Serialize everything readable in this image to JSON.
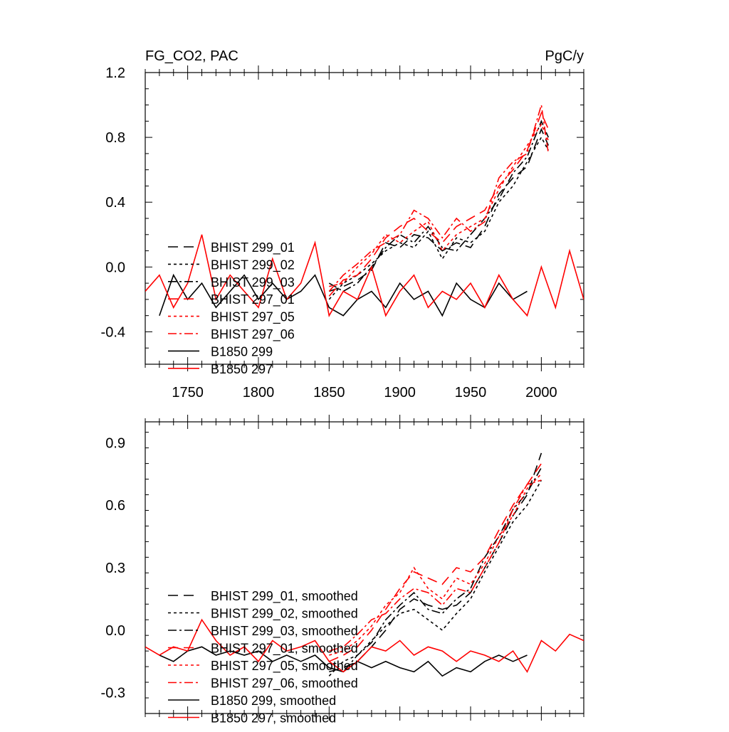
{
  "header": {
    "left_title": "FG_CO2, PAC",
    "right_units": "PgC/y"
  },
  "legend_styles": [
    {
      "key": "h1",
      "dash": "14 8",
      "color": "#000000"
    },
    {
      "key": "h2",
      "dash": "4 4",
      "color": "#000000"
    },
    {
      "key": "h3",
      "dash": "12 4 3 4",
      "color": "#000000"
    },
    {
      "key": "h4",
      "dash": "14 8",
      "color": "#ff0000"
    },
    {
      "key": "h5",
      "dash": "4 4",
      "color": "#ff0000"
    },
    {
      "key": "h6",
      "dash": "12 4 3 4",
      "color": "#ff0000"
    },
    {
      "key": "c1",
      "dash": "",
      "color": "#000000"
    },
    {
      "key": "c2",
      "dash": "",
      "color": "#ff0000"
    }
  ],
  "chart_data": [
    {
      "type": "line",
      "title": "",
      "xlabel": "",
      "ylabel": "",
      "xlim": [
        1720,
        2030
      ],
      "ylim": [
        -0.6,
        1.2
      ],
      "xticks": [
        1750,
        1800,
        1850,
        1900,
        1950,
        2000
      ],
      "yticks": [
        -0.4,
        0.0,
        0.4,
        0.8,
        1.2
      ],
      "ytick_labels": [
        "-0.4",
        "0.0",
        "0.4",
        "0.8",
        "1.2"
      ],
      "legend_position": "left",
      "series": [
        {
          "name": "BHIST 299_01",
          "style": "h1",
          "x": [
            1850,
            1860,
            1870,
            1880,
            1890,
            1900,
            1910,
            1920,
            1930,
            1940,
            1950,
            1960,
            1970,
            1980,
            1990,
            2000,
            2005
          ],
          "y": [
            -0.15,
            -0.12,
            -0.08,
            -0.02,
            0.15,
            0.12,
            0.2,
            0.18,
            0.1,
            0.15,
            0.12,
            0.25,
            0.45,
            0.55,
            0.62,
            0.85,
            0.75
          ]
        },
        {
          "name": "BHIST 299_02",
          "style": "h2",
          "x": [
            1850,
            1860,
            1870,
            1880,
            1890,
            1900,
            1910,
            1920,
            1930,
            1940,
            1950,
            1960,
            1970,
            1980,
            1990,
            2000,
            2005
          ],
          "y": [
            -0.2,
            -0.1,
            -0.05,
            0.02,
            0.1,
            0.15,
            0.12,
            0.22,
            0.05,
            0.18,
            0.15,
            0.22,
            0.4,
            0.5,
            0.65,
            0.8,
            0.72
          ]
        },
        {
          "name": "BHIST 299_03",
          "style": "h3",
          "x": [
            1850,
            1860,
            1870,
            1880,
            1890,
            1900,
            1910,
            1920,
            1930,
            1940,
            1950,
            1960,
            1970,
            1980,
            1990,
            2000,
            2005
          ],
          "y": [
            -0.1,
            -0.15,
            -0.1,
            0.0,
            0.12,
            0.2,
            0.15,
            0.25,
            0.12,
            0.1,
            0.2,
            0.3,
            0.42,
            0.58,
            0.68,
            0.9,
            0.8
          ]
        },
        {
          "name": "BHIST 297_01",
          "style": "h4",
          "x": [
            1850,
            1860,
            1870,
            1880,
            1890,
            1900,
            1910,
            1920,
            1930,
            1940,
            1950,
            1960,
            1970,
            1980,
            1990,
            2000,
            2005
          ],
          "y": [
            -0.18,
            -0.08,
            -0.05,
            0.05,
            0.18,
            0.25,
            0.3,
            0.22,
            0.15,
            0.25,
            0.3,
            0.35,
            0.5,
            0.6,
            0.72,
            0.95,
            0.85
          ]
        },
        {
          "name": "BHIST 297_05",
          "style": "h5",
          "x": [
            1850,
            1860,
            1870,
            1880,
            1890,
            1900,
            1910,
            1920,
            1930,
            1940,
            1950,
            1960,
            1970,
            1980,
            1990,
            2000,
            2005
          ],
          "y": [
            -0.12,
            -0.1,
            0.0,
            0.08,
            0.2,
            0.15,
            0.22,
            0.28,
            0.1,
            0.2,
            0.25,
            0.3,
            0.48,
            0.62,
            0.75,
            0.88,
            0.78
          ]
        },
        {
          "name": "BHIST 297_06",
          "style": "h6",
          "x": [
            1850,
            1860,
            1870,
            1880,
            1890,
            1900,
            1910,
            1920,
            1930,
            1940,
            1950,
            1960,
            1970,
            1980,
            1990,
            2000,
            2005
          ],
          "y": [
            -0.15,
            -0.05,
            0.02,
            0.1,
            0.15,
            0.2,
            0.35,
            0.3,
            0.18,
            0.3,
            0.22,
            0.28,
            0.55,
            0.65,
            0.7,
            1.0,
            0.7
          ]
        },
        {
          "name": "B1850 299",
          "style": "c1",
          "x": [
            1730,
            1740,
            1750,
            1760,
            1770,
            1780,
            1790,
            1800,
            1810,
            1820,
            1830,
            1840,
            1850,
            1860,
            1870,
            1880,
            1890,
            1900,
            1910,
            1920,
            1930,
            1940,
            1950,
            1960,
            1970,
            1980,
            1990
          ],
          "y": [
            -0.3,
            -0.05,
            -0.2,
            -0.1,
            -0.25,
            -0.15,
            -0.05,
            -0.2,
            -0.1,
            -0.2,
            -0.15,
            -0.05,
            -0.25,
            -0.3,
            -0.2,
            -0.15,
            -0.25,
            -0.1,
            -0.2,
            -0.15,
            -0.3,
            -0.1,
            -0.2,
            -0.25,
            -0.1,
            -0.2,
            -0.15
          ]
        },
        {
          "name": "B1850 297",
          "style": "c2",
          "x": [
            1720,
            1730,
            1740,
            1750,
            1760,
            1770,
            1780,
            1790,
            1800,
            1810,
            1820,
            1830,
            1840,
            1850,
            1860,
            1870,
            1880,
            1890,
            1900,
            1910,
            1920,
            1930,
            1940,
            1950,
            1960,
            1970,
            1980,
            1990,
            2000,
            2010,
            2020,
            2030
          ],
          "y": [
            -0.15,
            -0.05,
            -0.25,
            -0.1,
            0.2,
            -0.2,
            -0.05,
            -0.15,
            -0.25,
            0.05,
            -0.2,
            -0.1,
            0.15,
            -0.3,
            -0.15,
            -0.2,
            0.0,
            -0.3,
            -0.15,
            -0.05,
            -0.25,
            -0.15,
            -0.2,
            -0.1,
            -0.25,
            -0.05,
            -0.2,
            -0.3,
            0.0,
            -0.25,
            0.1,
            -0.2
          ]
        }
      ]
    },
    {
      "type": "line",
      "title": "",
      "xlabel": "",
      "ylabel": "",
      "xlim": [
        1720,
        2030
      ],
      "ylim": [
        -0.4,
        1.0
      ],
      "xticks": [
        1750,
        1800,
        1850,
        1900,
        1950,
        2000
      ],
      "yticks": [
        -0.3,
        0.0,
        0.3,
        0.6,
        0.9
      ],
      "ytick_labels": [
        "-0.3",
        "0.0",
        "0.3",
        "0.6",
        "0.9"
      ],
      "legend_position": "bottom-left",
      "series": [
        {
          "name": "BHIST 299_01, smoothed",
          "style": "h1",
          "x": [
            1850,
            1860,
            1870,
            1880,
            1890,
            1900,
            1910,
            1920,
            1930,
            1940,
            1950,
            1960,
            1970,
            1980,
            1990,
            2000
          ],
          "y": [
            -0.2,
            -0.18,
            -0.15,
            -0.08,
            0.0,
            0.1,
            0.15,
            0.12,
            0.1,
            0.12,
            0.18,
            0.3,
            0.42,
            0.55,
            0.65,
            0.85
          ]
        },
        {
          "name": "BHIST 299_02, smoothed",
          "style": "h2",
          "x": [
            1850,
            1860,
            1870,
            1880,
            1890,
            1900,
            1910,
            1920,
            1930,
            1940,
            1950,
            1960,
            1970,
            1980,
            1990,
            2000
          ],
          "y": [
            -0.22,
            -0.15,
            -0.12,
            -0.05,
            0.02,
            0.08,
            0.1,
            0.05,
            0.0,
            0.08,
            0.15,
            0.28,
            0.4,
            0.52,
            0.6,
            0.72
          ]
        },
        {
          "name": "BHIST 299_03, smoothed",
          "style": "h3",
          "x": [
            1850,
            1860,
            1870,
            1880,
            1890,
            1900,
            1910,
            1920,
            1930,
            1940,
            1950,
            1960,
            1970,
            1980,
            1990,
            2000
          ],
          "y": [
            -0.18,
            -0.2,
            -0.12,
            -0.06,
            0.05,
            0.12,
            0.18,
            0.1,
            0.08,
            0.15,
            0.2,
            0.35,
            0.45,
            0.58,
            0.66,
            0.78
          ]
        },
        {
          "name": "BHIST 297_01, smoothed",
          "style": "h4",
          "x": [
            1850,
            1860,
            1870,
            1880,
            1890,
            1900,
            1910,
            1920,
            1930,
            1940,
            1950,
            1960,
            1970,
            1980,
            1990,
            2000
          ],
          "y": [
            -0.15,
            -0.12,
            -0.08,
            0.0,
            0.1,
            0.2,
            0.28,
            0.25,
            0.22,
            0.3,
            0.28,
            0.35,
            0.48,
            0.6,
            0.7,
            0.8
          ]
        },
        {
          "name": "BHIST 297_05, smoothed",
          "style": "h5",
          "x": [
            1850,
            1860,
            1870,
            1880,
            1890,
            1900,
            1910,
            1920,
            1930,
            1940,
            1950,
            1960,
            1970,
            1980,
            1990,
            2000
          ],
          "y": [
            -0.12,
            -0.1,
            -0.05,
            0.02,
            0.12,
            0.18,
            0.3,
            0.2,
            0.15,
            0.25,
            0.22,
            0.32,
            0.45,
            0.55,
            0.68,
            0.75
          ]
        },
        {
          "name": "BHIST 297_06, smoothed",
          "style": "h6",
          "x": [
            1850,
            1860,
            1870,
            1880,
            1890,
            1900,
            1910,
            1920,
            1930,
            1940,
            1950,
            1960,
            1970,
            1980,
            1990,
            2000
          ],
          "y": [
            -0.1,
            -0.08,
            -0.02,
            0.05,
            0.08,
            0.15,
            0.2,
            0.18,
            0.12,
            0.2,
            0.18,
            0.3,
            0.42,
            0.58,
            0.7,
            0.72
          ]
        },
        {
          "name": "B1850 299, smoothed",
          "style": "c1",
          "x": [
            1730,
            1740,
            1750,
            1760,
            1770,
            1780,
            1790,
            1800,
            1810,
            1820,
            1830,
            1840,
            1850,
            1860,
            1870,
            1880,
            1890,
            1900,
            1910,
            1920,
            1930,
            1940,
            1950,
            1960,
            1970,
            1980,
            1990
          ],
          "y": [
            -0.12,
            -0.15,
            -0.1,
            -0.08,
            -0.12,
            -0.1,
            -0.12,
            -0.1,
            -0.15,
            -0.12,
            -0.15,
            -0.12,
            -0.18,
            -0.2,
            -0.15,
            -0.18,
            -0.15,
            -0.18,
            -0.2,
            -0.15,
            -0.22,
            -0.18,
            -0.2,
            -0.15,
            -0.12,
            -0.15,
            -0.12
          ]
        },
        {
          "name": "B1850 297, smoothed",
          "style": "c2",
          "x": [
            1720,
            1730,
            1740,
            1750,
            1760,
            1770,
            1780,
            1790,
            1800,
            1810,
            1820,
            1830,
            1840,
            1850,
            1860,
            1870,
            1880,
            1890,
            1900,
            1910,
            1920,
            1930,
            1940,
            1950,
            1960,
            1970,
            1980,
            1990,
            2000,
            2010,
            2020,
            2030
          ],
          "y": [
            -0.08,
            -0.12,
            -0.08,
            -0.1,
            0.05,
            -0.05,
            -0.12,
            -0.08,
            -0.15,
            -0.05,
            -0.1,
            -0.08,
            -0.05,
            -0.15,
            -0.2,
            -0.15,
            -0.08,
            -0.1,
            -0.05,
            -0.12,
            -0.08,
            -0.1,
            -0.15,
            -0.1,
            -0.12,
            -0.15,
            -0.1,
            -0.2,
            -0.05,
            -0.1,
            -0.02,
            -0.05
          ]
        }
      ]
    }
  ]
}
